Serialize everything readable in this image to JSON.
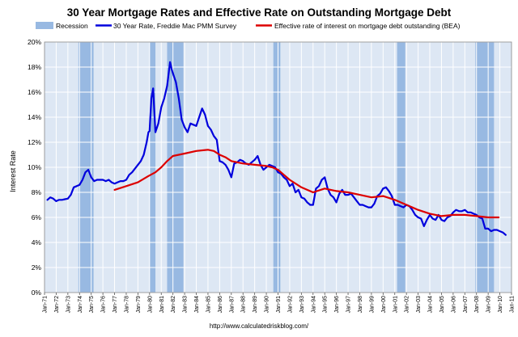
{
  "chart_data": {
    "type": "line",
    "title": "30 Year Mortgage Rates and Effective Rate on Outstanding Mortgage Debt",
    "xlabel": "",
    "ylabel": "Interest Rate",
    "source_url": "http://www.calculatedriskblog.com/",
    "x_range": [
      1971.0,
      2011.0
    ],
    "ylim": [
      0,
      20
    ],
    "y_ticks": [
      0,
      2,
      4,
      6,
      8,
      10,
      12,
      14,
      16,
      18,
      20
    ],
    "y_tick_labels": [
      "0%",
      "2%",
      "4%",
      "6%",
      "8%",
      "10%",
      "12%",
      "14%",
      "16%",
      "18%",
      "20%"
    ],
    "x_tick_labels": [
      "Jan-71",
      "Jan-72",
      "Jan-73",
      "Jan-74",
      "Jan-75",
      "Jan-76",
      "Jan-77",
      "Jan-78",
      "Jan-79",
      "Jan-80",
      "Jan-81",
      "Jan-82",
      "Jan-83",
      "Jan-84",
      "Jan-85",
      "Jan-86",
      "Jan-87",
      "Jan-88",
      "Jan-89",
      "Jan-90",
      "Jan-91",
      "Jan-92",
      "Jan-93",
      "Jan-94",
      "Jan-95",
      "Jan-96",
      "Jan-97",
      "Jan-98",
      "Jan-99",
      "Jan-00",
      "Jan-01",
      "Jan-02",
      "Jan-03",
      "Jan-04",
      "Jan-05",
      "Jan-06",
      "Jan-07",
      "Jan-08",
      "Jan-09",
      "Jan-10",
      "Jan-11"
    ],
    "grid": true,
    "legend": "top",
    "recessions": [
      {
        "start": 1973.9,
        "end": 1975.2
      },
      {
        "start": 1980.0,
        "end": 1980.5
      },
      {
        "start": 1981.5,
        "end": 1982.9
      },
      {
        "start": 1990.6,
        "end": 1991.2
      },
      {
        "start": 2001.2,
        "end": 2001.9
      },
      {
        "start": 2007.9,
        "end": 2009.5
      }
    ],
    "series": [
      {
        "name": "30 Year Rate, Freddie Mac PMM Survey",
        "color": "#0000dd",
        "x": [
          1971.25,
          1971.5,
          1971.75,
          1972.0,
          1972.25,
          1972.5,
          1972.75,
          1973.0,
          1973.25,
          1973.5,
          1973.75,
          1974.0,
          1974.25,
          1974.5,
          1974.75,
          1975.0,
          1975.25,
          1975.5,
          1975.75,
          1976.0,
          1976.25,
          1976.5,
          1976.75,
          1977.0,
          1977.25,
          1977.5,
          1977.75,
          1978.0,
          1978.25,
          1978.5,
          1978.75,
          1979.0,
          1979.25,
          1979.5,
          1979.75,
          1979.9,
          1980.0,
          1980.15,
          1980.3,
          1980.5,
          1980.75,
          1981.0,
          1981.25,
          1981.5,
          1981.75,
          1981.9,
          1982.0,
          1982.25,
          1982.5,
          1982.75,
          1983.0,
          1983.25,
          1983.5,
          1983.75,
          1984.0,
          1984.25,
          1984.5,
          1984.75,
          1985.0,
          1985.25,
          1985.5,
          1985.75,
          1986.0,
          1986.25,
          1986.5,
          1986.75,
          1987.0,
          1987.25,
          1987.5,
          1987.75,
          1988.0,
          1988.25,
          1988.5,
          1988.75,
          1989.0,
          1989.25,
          1989.5,
          1989.75,
          1990.0,
          1990.25,
          1990.5,
          1990.75,
          1991.0,
          1991.25,
          1991.5,
          1991.75,
          1992.0,
          1992.25,
          1992.5,
          1992.75,
          1993.0,
          1993.25,
          1993.5,
          1993.75,
          1994.0,
          1994.25,
          1994.5,
          1994.75,
          1995.0,
          1995.25,
          1995.5,
          1995.75,
          1996.0,
          1996.25,
          1996.5,
          1996.75,
          1997.0,
          1997.25,
          1997.5,
          1997.75,
          1998.0,
          1998.25,
          1998.5,
          1998.75,
          1999.0,
          1999.25,
          1999.5,
          1999.75,
          2000.0,
          2000.25,
          2000.5,
          2000.75,
          2001.0,
          2001.25,
          2001.5,
          2001.75,
          2002.0,
          2002.25,
          2002.5,
          2002.75,
          2003.0,
          2003.25,
          2003.5,
          2003.75,
          2004.0,
          2004.25,
          2004.5,
          2004.75,
          2005.0,
          2005.25,
          2005.5,
          2005.75,
          2006.0,
          2006.25,
          2006.5,
          2006.75,
          2007.0,
          2007.25,
          2007.5,
          2007.75,
          2008.0,
          2008.25,
          2008.5,
          2008.75,
          2009.0,
          2009.25,
          2009.5,
          2009.75,
          2010.0,
          2010.25,
          2010.5
        ],
        "values": [
          7.4,
          7.6,
          7.5,
          7.3,
          7.4,
          7.4,
          7.45,
          7.5,
          7.8,
          8.4,
          8.5,
          8.6,
          9.0,
          9.6,
          9.8,
          9.2,
          8.9,
          9.0,
          9.0,
          9.0,
          8.9,
          9.0,
          8.8,
          8.7,
          8.8,
          8.9,
          8.9,
          9.0,
          9.4,
          9.6,
          9.9,
          10.2,
          10.5,
          11.0,
          12.0,
          12.8,
          12.9,
          15.5,
          16.3,
          12.8,
          13.5,
          14.8,
          15.5,
          16.5,
          18.4,
          17.8,
          17.5,
          16.8,
          15.5,
          13.8,
          13.2,
          12.8,
          13.5,
          13.4,
          13.3,
          14.0,
          14.7,
          14.2,
          13.3,
          13.0,
          12.5,
          12.2,
          10.5,
          10.4,
          10.2,
          9.8,
          9.2,
          10.3,
          10.4,
          10.6,
          10.5,
          10.3,
          10.2,
          10.4,
          10.6,
          10.9,
          10.2,
          9.8,
          10.0,
          10.2,
          10.1,
          10.0,
          9.6,
          9.5,
          9.2,
          9.0,
          8.5,
          8.7,
          8.0,
          8.2,
          7.6,
          7.5,
          7.2,
          7.0,
          7.0,
          8.3,
          8.5,
          9.0,
          9.2,
          8.3,
          7.8,
          7.6,
          7.2,
          7.9,
          8.2,
          7.8,
          7.8,
          7.9,
          7.6,
          7.3,
          7.0,
          7.0,
          6.9,
          6.8,
          6.8,
          7.1,
          7.7,
          7.9,
          8.3,
          8.4,
          8.1,
          7.7,
          7.0,
          7.0,
          6.9,
          6.8,
          7.0,
          6.9,
          6.6,
          6.2,
          6.0,
          5.9,
          5.3,
          5.8,
          6.2,
          5.9,
          5.8,
          6.2,
          5.8,
          5.7,
          6.0,
          6.1,
          6.4,
          6.6,
          6.5,
          6.5,
          6.6,
          6.4,
          6.4,
          6.3,
          6.2,
          6.0,
          5.9,
          5.1,
          5.1,
          4.9,
          5.0,
          5.0,
          4.9,
          4.8,
          4.6
        ]
      },
      {
        "name": "Effective rate of interest on mortgage debt outstanding (BEA)",
        "color": "#dd0000",
        "x": [
          1977.0,
          1978.0,
          1979.0,
          1979.9,
          1980.5,
          1981.0,
          1981.5,
          1982.0,
          1983.0,
          1984.0,
          1985.0,
          1985.5,
          1986.0,
          1986.5,
          1987.0,
          1988.0,
          1989.0,
          1990.0,
          1990.5,
          1991.0,
          1991.5,
          1992.0,
          1993.0,
          1994.0,
          1995.0,
          1996.0,
          1997.0,
          1998.0,
          1999.0,
          2000.0,
          2001.0,
          2002.0,
          2003.0,
          2004.0,
          2005.0,
          2006.0,
          2007.0,
          2008.0,
          2009.0,
          2009.9
        ],
        "values": [
          8.2,
          8.5,
          8.8,
          9.3,
          9.6,
          10.0,
          10.5,
          10.9,
          11.1,
          11.3,
          11.4,
          11.3,
          11.0,
          10.8,
          10.5,
          10.3,
          10.2,
          10.1,
          10.0,
          9.8,
          9.4,
          9.0,
          8.4,
          8.0,
          8.3,
          8.1,
          8.0,
          7.8,
          7.6,
          7.7,
          7.4,
          7.0,
          6.6,
          6.3,
          6.1,
          6.2,
          6.2,
          6.1,
          6.0,
          6.0
        ]
      }
    ],
    "colors": {
      "plot_bg": "#dde7f4",
      "recession": "#98b9e2",
      "grid": "#ffffff"
    }
  }
}
